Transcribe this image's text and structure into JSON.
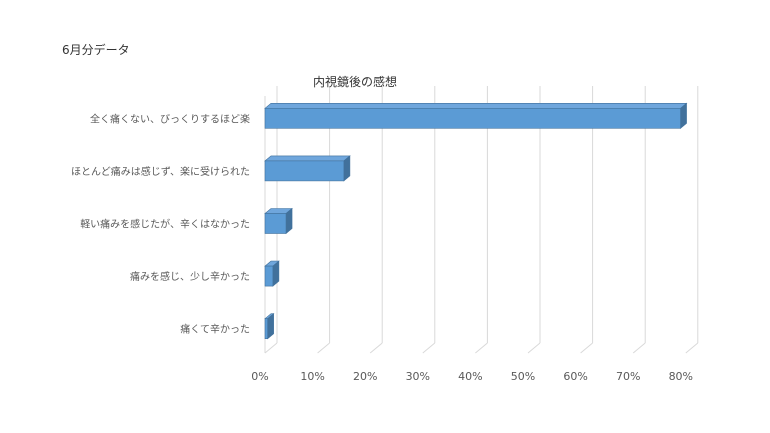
{
  "page": {
    "heading": "6月分データ"
  },
  "chart_data": {
    "type": "bar",
    "orientation": "horizontal",
    "style": "3d",
    "title": "内視鏡後の感想",
    "categories": [
      "全く痛くない、びっくりするほど楽",
      "ほとんど痛みは感じず、楽に受けられた",
      "軽い痛みを感じたが、辛くはなかった",
      "痛みを感じ、少し辛かった",
      "痛くて辛かった"
    ],
    "values": [
      79,
      15,
      4,
      1.5,
      0.5
    ],
    "unit": "%",
    "xlim": [
      0,
      80
    ],
    "xticks": [
      "0%",
      "10%",
      "20%",
      "30%",
      "40%",
      "50%",
      "60%",
      "70%",
      "80%"
    ],
    "grid": true,
    "legend": false,
    "colors": {
      "bar": "#5b9bd5",
      "bar_top": "#6fa6dc",
      "bar_side": "#41719c",
      "grid": "#d9d9d9",
      "text": "#595959"
    }
  }
}
